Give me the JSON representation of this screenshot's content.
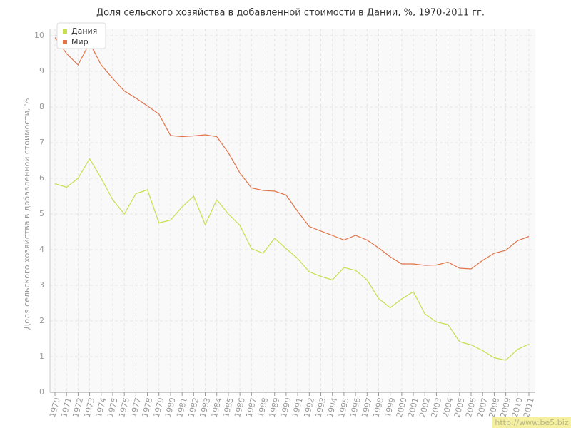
{
  "chart_data": {
    "type": "line",
    "title": "Доля сельского хозяйства в добавленной стоимости в Дании, %, 1970-2011 гг.",
    "y_label": "Доля сельского хозяйства в добавленной стоимости, %",
    "categories": [
      "1970",
      "1971",
      "1972",
      "1973",
      "1974",
      "1975",
      "1976",
      "1977",
      "1978",
      "1979",
      "1980",
      "1981",
      "1982",
      "1983",
      "1984",
      "1985",
      "1986",
      "1987",
      "1988",
      "1989",
      "1990",
      "1991",
      "1992",
      "1993",
      "1994",
      "1995",
      "1996",
      "1997",
      "1998",
      "1999",
      "2000",
      "2001",
      "2002",
      "2003",
      "2004",
      "2005",
      "2006",
      "2007",
      "2008",
      "2009",
      "2010",
      "2011"
    ],
    "series": [
      {
        "name": "Дания",
        "color": "#c5df4f",
        "values": [
          5.85,
          5.75,
          6.0,
          6.55,
          6.0,
          5.4,
          5.0,
          5.57,
          5.68,
          4.75,
          4.83,
          5.2,
          5.5,
          4.7,
          5.4,
          5.0,
          4.68,
          4.03,
          3.9,
          4.32,
          4.03,
          3.75,
          3.38,
          3.25,
          3.15,
          3.5,
          3.42,
          3.15,
          2.63,
          2.37,
          2.62,
          2.82,
          2.2,
          1.97,
          1.9,
          1.42,
          1.33,
          1.17,
          0.97,
          0.9,
          1.2,
          1.35
        ]
      },
      {
        "name": "Мир",
        "color": "#e2744a",
        "values": [
          9.95,
          9.5,
          9.18,
          9.8,
          9.18,
          8.8,
          8.45,
          8.25,
          8.03,
          7.8,
          7.2,
          7.17,
          7.19,
          7.22,
          7.17,
          6.72,
          6.15,
          5.73,
          5.66,
          5.64,
          5.53,
          5.07,
          4.65,
          4.52,
          4.4,
          4.27,
          4.4,
          4.27,
          4.05,
          3.8,
          3.6,
          3.6,
          3.56,
          3.57,
          3.65,
          3.48,
          3.46,
          3.7,
          3.9,
          3.98,
          4.25,
          4.37
        ]
      }
    ],
    "ylim": [
      0,
      10
    ],
    "yticks": [
      0,
      1,
      2,
      3,
      4,
      5,
      6,
      7,
      8,
      9,
      10
    ],
    "grid": true,
    "legend": "top-left",
    "watermark": "http://www.be5.biz"
  }
}
